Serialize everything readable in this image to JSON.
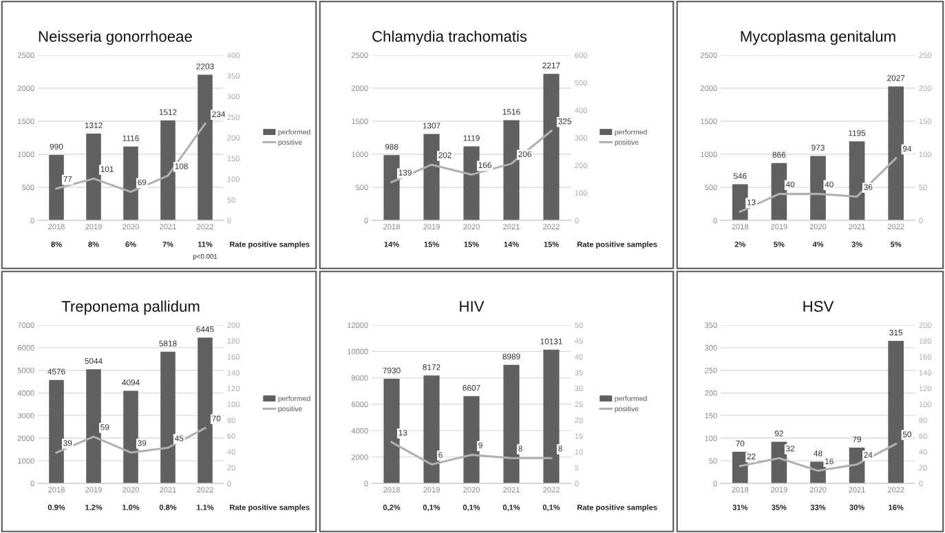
{
  "chart_data": [
    {
      "type": "bar",
      "title": "Neisseria gonorrhoeae",
      "categories": [
        "2018",
        "2019",
        "2020",
        "2021",
        "2022"
      ],
      "series": [
        {
          "name": "performed",
          "color": "#5f6062",
          "values": [
            990,
            1312,
            1116,
            1512,
            2203
          ]
        },
        {
          "name": "positive",
          "type": "line",
          "axis": "y2",
          "color": "#b0b0b0",
          "values": [
            77,
            101,
            69,
            108,
            234
          ]
        }
      ],
      "ylim": [
        0,
        2500
      ],
      "yticks": [
        0,
        500,
        1000,
        1500,
        2000,
        2500
      ],
      "y2lim": [
        0,
        400
      ],
      "y2ticks": [
        0,
        50,
        100,
        150,
        200,
        250,
        300,
        350,
        400
      ],
      "grid": "y",
      "legend": "right",
      "data_labels": true,
      "marker": "none",
      "annotations": [
        "8%",
        "8%",
        "6%",
        "7%",
        "11%",
        "Rate positive samples",
        "p<0.001"
      ]
    },
    {
      "type": "bar",
      "title": "Chlamydia trachomatis",
      "categories": [
        "2018",
        "2019",
        "2020",
        "2021",
        "2022"
      ],
      "series": [
        {
          "name": "performed",
          "color": "#5f6062",
          "values": [
            988,
            1307,
            1119,
            1516,
            2217
          ]
        },
        {
          "name": "positive",
          "type": "line",
          "axis": "y2",
          "color": "#b0b0b0",
          "values": [
            139,
            202,
            166,
            206,
            325
          ]
        }
      ],
      "ylim": [
        0,
        2500
      ],
      "yticks": [
        0,
        500,
        1000,
        1500,
        2000,
        2500
      ],
      "y2lim": [
        0,
        600
      ],
      "y2ticks": [
        0,
        100,
        200,
        300,
        400,
        500,
        600
      ],
      "grid": "y",
      "legend": "right",
      "data_labels": true,
      "marker": "none",
      "annotations": [
        "14%",
        "15%",
        "15%",
        "14%",
        "15%",
        "Rate positive samples"
      ]
    },
    {
      "type": "bar",
      "title": "Mycoplasma genitalum",
      "categories": [
        "2018",
        "2019",
        "2020",
        "2021",
        "2022"
      ],
      "series": [
        {
          "color": "#5f6062",
          "values": [
            546,
            866,
            973,
            1195,
            2027
          ]
        },
        {
          "type": "line",
          "axis": "y2",
          "color": "#b0b0b0",
          "values": [
            13,
            40,
            40,
            36,
            94
          ]
        }
      ],
      "ylim": [
        0,
        2500
      ],
      "yticks": [
        0,
        500,
        1000,
        1500,
        2000,
        2500
      ],
      "y2lim": [
        0,
        250
      ],
      "y2ticks": [
        0,
        50,
        100,
        150,
        200,
        250
      ],
      "grid": "y",
      "data_labels": true,
      "marker": "none",
      "annotations": [
        "2%",
        "5%",
        "4%",
        "3%",
        "5%"
      ]
    },
    {
      "type": "bar",
      "title": "Treponema pallidum",
      "categories": [
        "2018",
        "2019",
        "2020",
        "2021",
        "2022"
      ],
      "series": [
        {
          "name": "performed",
          "color": "#5f6062",
          "values": [
            4576,
            5044,
            4094,
            5818,
            6445
          ]
        },
        {
          "name": "positive",
          "type": "line",
          "axis": "y2",
          "color": "#b0b0b0",
          "values": [
            39,
            59,
            39,
            45,
            70
          ]
        }
      ],
      "ylim": [
        0,
        7000
      ],
      "yticks": [
        0,
        1000,
        2000,
        3000,
        4000,
        5000,
        6000,
        7000
      ],
      "y2lim": [
        0,
        200
      ],
      "y2ticks": [
        0,
        20,
        40,
        60,
        80,
        100,
        120,
        140,
        160,
        180,
        200
      ],
      "grid": "y",
      "legend": "right",
      "data_labels": true,
      "marker": "none",
      "annotations": [
        "0.9%",
        "1.2%",
        "1.0%",
        "0.8%",
        "1.1%",
        "Rate positive samples"
      ]
    },
    {
      "type": "bar",
      "title": "HIV",
      "categories": [
        "2018",
        "2019",
        "2020",
        "2021",
        "2022"
      ],
      "series": [
        {
          "name": "performed",
          "color": "#5f6062",
          "values": [
            7930,
            8172,
            6607,
            8989,
            10131
          ]
        },
        {
          "name": "positive",
          "type": "line",
          "axis": "y2",
          "color": "#b0b0b0",
          "values": [
            13,
            6,
            9,
            8,
            8
          ]
        }
      ],
      "ylim": [
        0,
        12000
      ],
      "yticks": [
        0,
        2000,
        4000,
        6000,
        8000,
        10000,
        12000
      ],
      "y2lim": [
        0,
        50
      ],
      "y2ticks": [
        0,
        5,
        10,
        15,
        20,
        25,
        30,
        35,
        40,
        45,
        50
      ],
      "grid": "y",
      "legend": "right",
      "data_labels": true,
      "marker": "none",
      "annotations": [
        "0,2%",
        "0,1%",
        "0,1%",
        "0,1%",
        "0,1%",
        "Rate positive samples"
      ]
    },
    {
      "type": "bar",
      "title": "HSV",
      "categories": [
        "2018",
        "2019",
        "2020",
        "2021",
        "2022"
      ],
      "series": [
        {
          "color": "#5f6062",
          "values": [
            70,
            92,
            48,
            79,
            315
          ]
        },
        {
          "type": "line",
          "axis": "y2",
          "color": "#b0b0b0",
          "values": [
            22,
            32,
            16,
            24,
            50
          ]
        }
      ],
      "ylim": [
        0,
        350
      ],
      "yticks": [
        0,
        50,
        100,
        150,
        200,
        250,
        300,
        350
      ],
      "y2lim": [
        0,
        200
      ],
      "y2ticks": [
        0,
        20,
        40,
        60,
        80,
        100,
        120,
        140,
        160,
        180,
        200
      ],
      "grid": "y",
      "data_labels": true,
      "marker": "none",
      "annotations": [
        "31%",
        "35%",
        "33%",
        "30%",
        "16%"
      ]
    }
  ]
}
